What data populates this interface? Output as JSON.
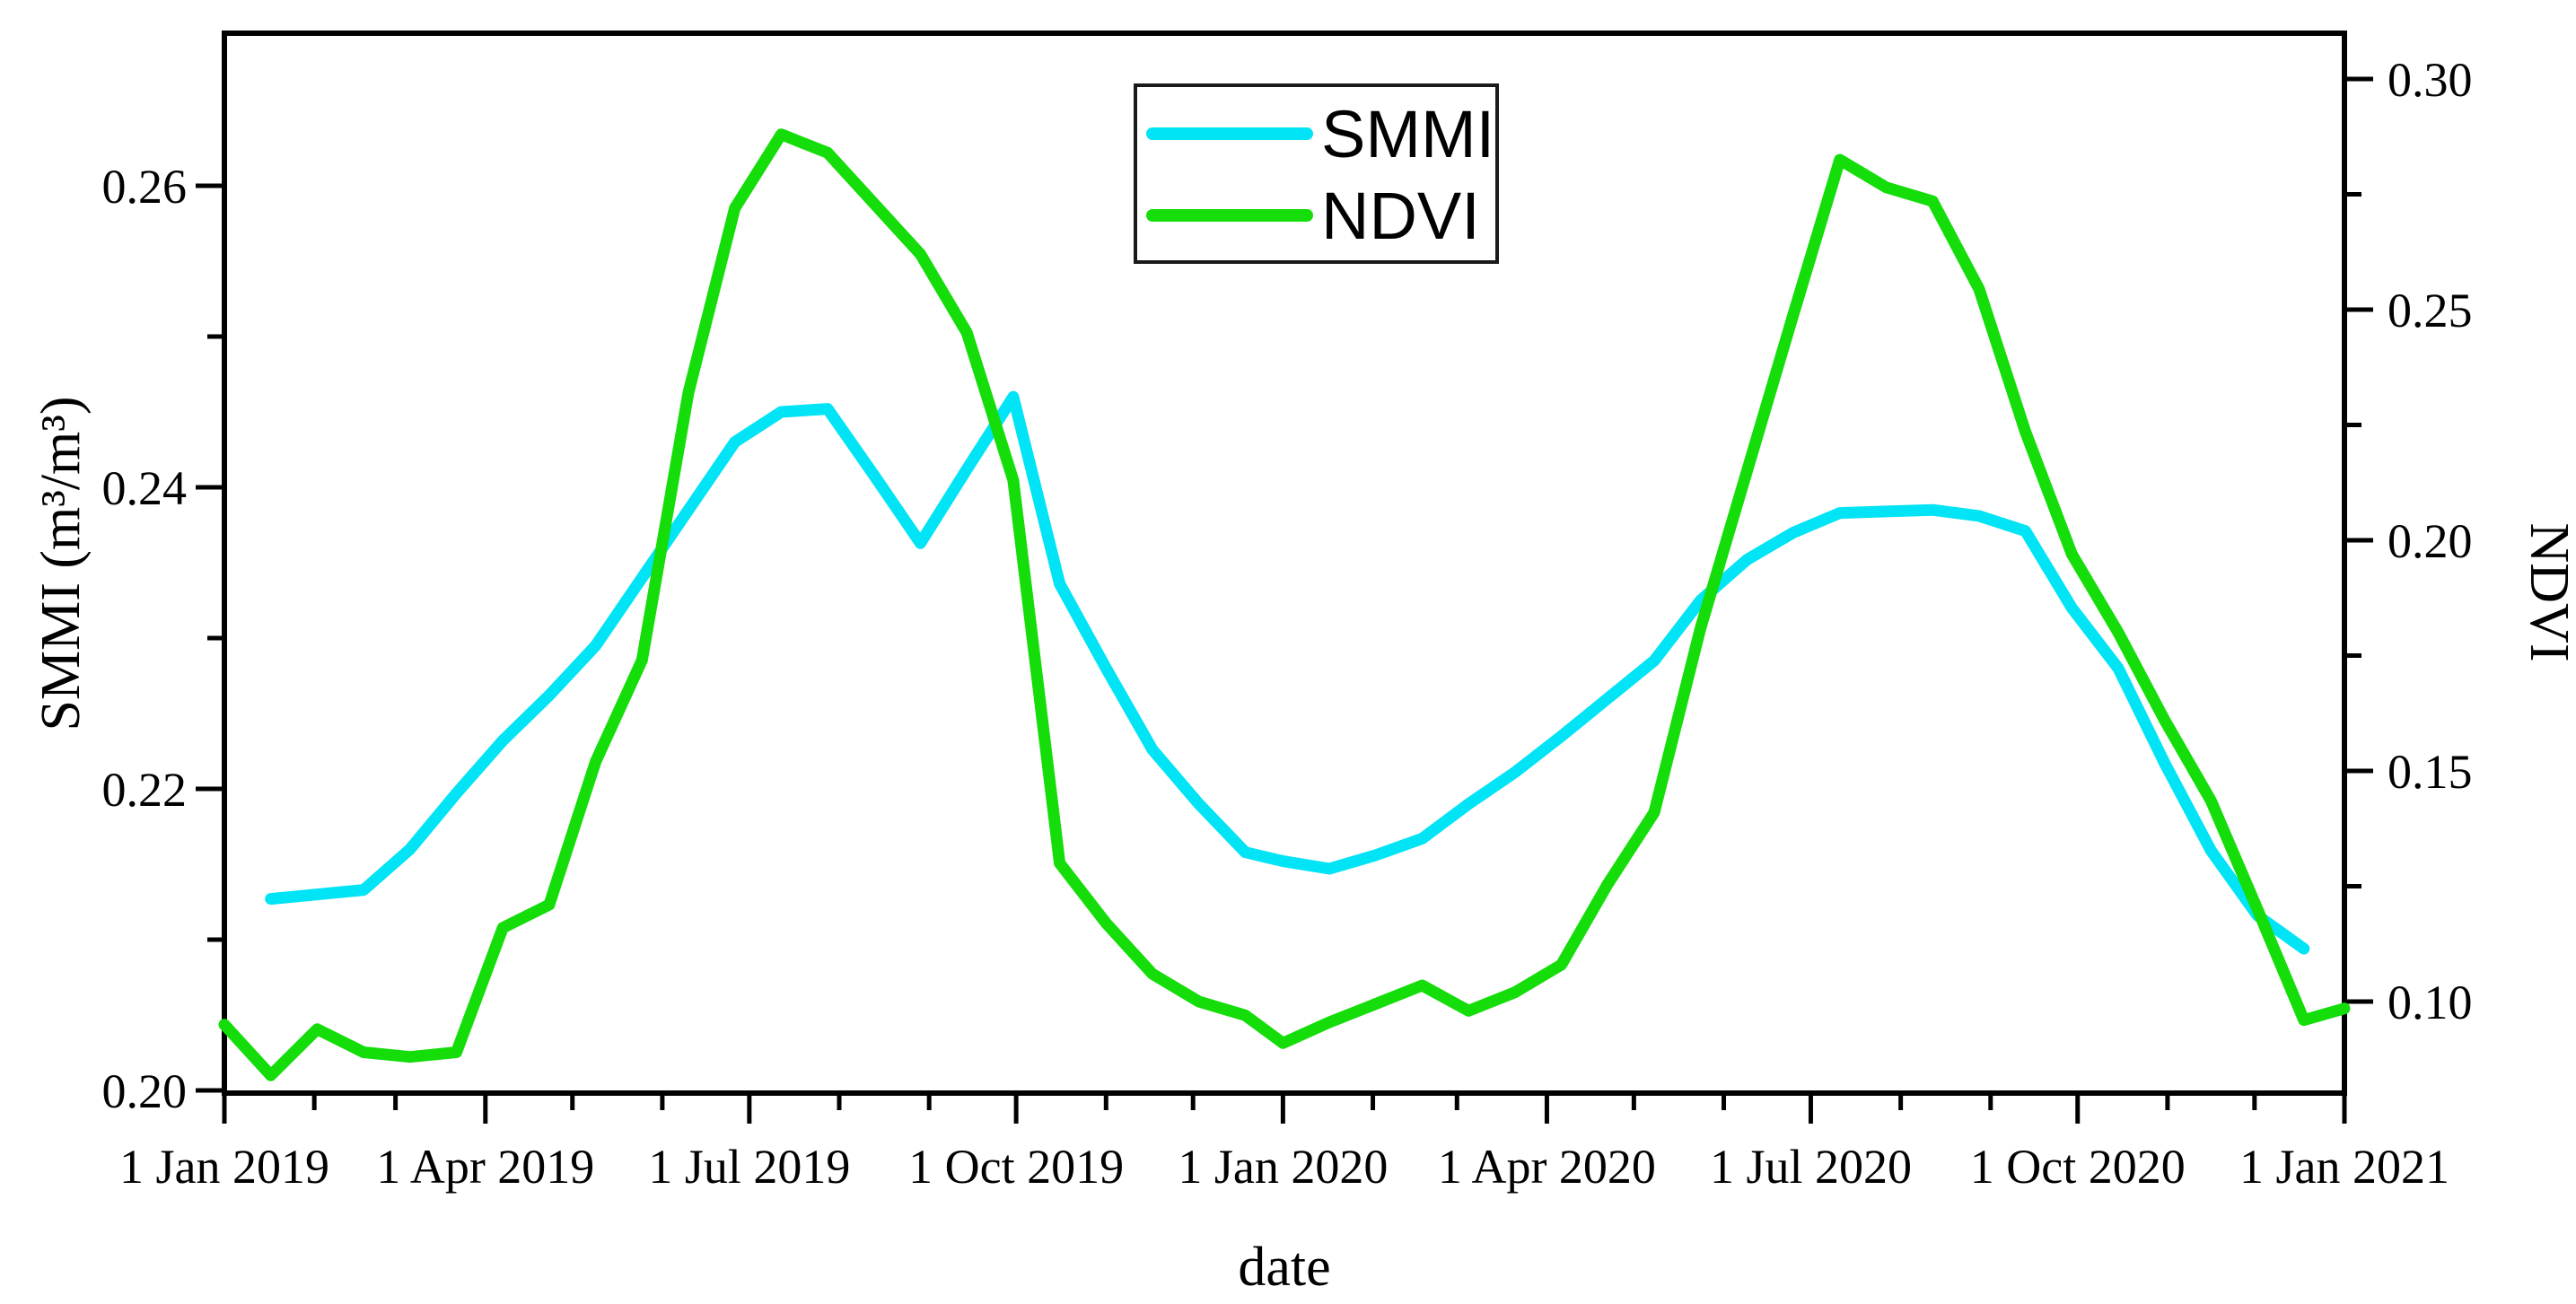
{
  "figure": {
    "background": "#ffffff",
    "axis_color": "#000000"
  },
  "titles": {
    "x_axis": "date",
    "y_left": "SMMI (m³/m³)",
    "y_right": "NDVI"
  },
  "legend": {
    "items": [
      {
        "label": "SMMI",
        "color": "#00e4f5"
      },
      {
        "label": "NDVI",
        "color": "#14dd0a"
      }
    ]
  },
  "chart_data": {
    "type": "line",
    "title": "",
    "xlabel": "date",
    "ylabel_left": "SMMI (m³/m³)",
    "ylabel_right": "NDVI",
    "x_range": [
      "2019-01-01",
      "2021-01-01"
    ],
    "y_left_range": [
      0.1998,
      0.2701
    ],
    "y_right_range": [
      0.0802,
      0.3099
    ],
    "grid": false,
    "legend_position": "top-center",
    "x_major_ticks": [
      {
        "date": "2019-01-01",
        "label": "1 Jan 2019"
      },
      {
        "date": "2019-04-01",
        "label": "1 Apr 2019"
      },
      {
        "date": "2019-07-01",
        "label": "1 Jul 2019"
      },
      {
        "date": "2019-10-01",
        "label": "1 Oct 2019"
      },
      {
        "date": "2020-01-01",
        "label": "1 Jan 2020"
      },
      {
        "date": "2020-04-01",
        "label": "1 Apr 2020"
      },
      {
        "date": "2020-07-01",
        "label": "1 Jul 2020"
      },
      {
        "date": "2020-10-01",
        "label": "1 Oct 2020"
      },
      {
        "date": "2021-01-01",
        "label": "1 Jan 2021"
      }
    ],
    "x_minor_ticks_every": "1 month",
    "y_left_major_ticks": [
      {
        "value": 0.2,
        "label": "0.20"
      },
      {
        "value": 0.22,
        "label": "0.22"
      },
      {
        "value": 0.24,
        "label": "0.24"
      },
      {
        "value": 0.26,
        "label": "0.26"
      }
    ],
    "y_left_minor_ticks": [
      0.21,
      0.23,
      0.25
    ],
    "y_right_major_ticks": [
      {
        "value": 0.1,
        "label": "0.10"
      },
      {
        "value": 0.15,
        "label": "0.15"
      },
      {
        "value": 0.2,
        "label": "0.20"
      },
      {
        "value": 0.25,
        "label": "0.25"
      },
      {
        "value": 0.3,
        "label": "0.30"
      }
    ],
    "y_right_minor_ticks": [
      0.125,
      0.175,
      0.225,
      0.275
    ],
    "series": [
      {
        "name": "SMMI",
        "axis": "left",
        "color": "#00e4f5",
        "dates": [
          "2019-01-17",
          "2019-02-02",
          "2019-02-18",
          "2019-03-06",
          "2019-03-22",
          "2019-04-07",
          "2019-04-23",
          "2019-05-09",
          "2019-05-25",
          "2019-06-10",
          "2019-06-26",
          "2019-07-12",
          "2019-07-28",
          "2019-08-13",
          "2019-08-29",
          "2019-09-14",
          "2019-09-30",
          "2019-10-16",
          "2019-11-01",
          "2019-11-17",
          "2019-12-03",
          "2019-12-19",
          "2020-01-01",
          "2020-01-17",
          "2020-02-02",
          "2020-02-18",
          "2020-03-05",
          "2020-03-21",
          "2020-04-06",
          "2020-04-22",
          "2020-05-08",
          "2020-05-24",
          "2020-06-09",
          "2020-06-25",
          "2020-07-11",
          "2020-07-27",
          "2020-08-12",
          "2020-08-28",
          "2020-09-13",
          "2020-09-29",
          "2020-10-15",
          "2020-10-31",
          "2020-11-16",
          "2020-12-02",
          "2020-12-18"
        ],
        "values": [
          0.2127,
          0.213,
          0.2133,
          0.216,
          0.2197,
          0.2232,
          0.2262,
          0.2295,
          0.234,
          0.2385,
          0.243,
          0.245,
          0.2452,
          0.2408,
          0.2363,
          0.2412,
          0.246,
          0.2336,
          0.228,
          0.2226,
          0.219,
          0.2158,
          0.2152,
          0.2147,
          0.2156,
          0.2167,
          0.219,
          0.2211,
          0.2235,
          0.226,
          0.2285,
          0.2325,
          0.2352,
          0.237,
          0.2383,
          0.2384,
          0.2385,
          0.2381,
          0.2371,
          0.232,
          0.228,
          0.2217,
          0.2159,
          0.2116,
          0.2094
        ]
      },
      {
        "name": "NDVI",
        "axis": "right",
        "color": "#14dd0a",
        "dates": [
          "2019-01-01",
          "2019-01-17",
          "2019-02-02",
          "2019-02-18",
          "2019-03-06",
          "2019-03-22",
          "2019-04-07",
          "2019-04-23",
          "2019-05-09",
          "2019-05-25",
          "2019-06-10",
          "2019-06-26",
          "2019-07-12",
          "2019-07-28",
          "2019-08-13",
          "2019-08-29",
          "2019-09-14",
          "2019-09-30",
          "2019-10-16",
          "2019-11-01",
          "2019-11-17",
          "2019-12-03",
          "2019-12-19",
          "2020-01-01",
          "2020-01-17",
          "2020-02-02",
          "2020-02-18",
          "2020-03-05",
          "2020-03-21",
          "2020-04-06",
          "2020-04-22",
          "2020-05-08",
          "2020-05-24",
          "2020-06-09",
          "2020-06-25",
          "2020-07-11",
          "2020-07-27",
          "2020-08-12",
          "2020-08-28",
          "2020-09-13",
          "2020-09-29",
          "2020-10-15",
          "2020-10-31",
          "2020-11-16",
          "2020-12-02",
          "2020-12-18",
          "2021-01-01"
        ],
        "values": [
          0.095,
          0.084,
          0.094,
          0.089,
          0.088,
          0.089,
          0.116,
          0.121,
          0.152,
          0.174,
          0.232,
          0.272,
          0.288,
          0.284,
          0.273,
          0.262,
          0.245,
          0.213,
          0.13,
          0.117,
          0.106,
          0.1,
          0.097,
          0.091,
          0.0955,
          0.0995,
          0.1035,
          0.098,
          0.102,
          0.108,
          0.1255,
          0.141,
          0.181,
          0.215,
          0.249,
          0.2825,
          0.2765,
          0.2735,
          0.2545,
          0.2235,
          0.197,
          0.18,
          0.161,
          0.1435,
          0.12,
          0.096,
          0.0985
        ]
      }
    ]
  }
}
